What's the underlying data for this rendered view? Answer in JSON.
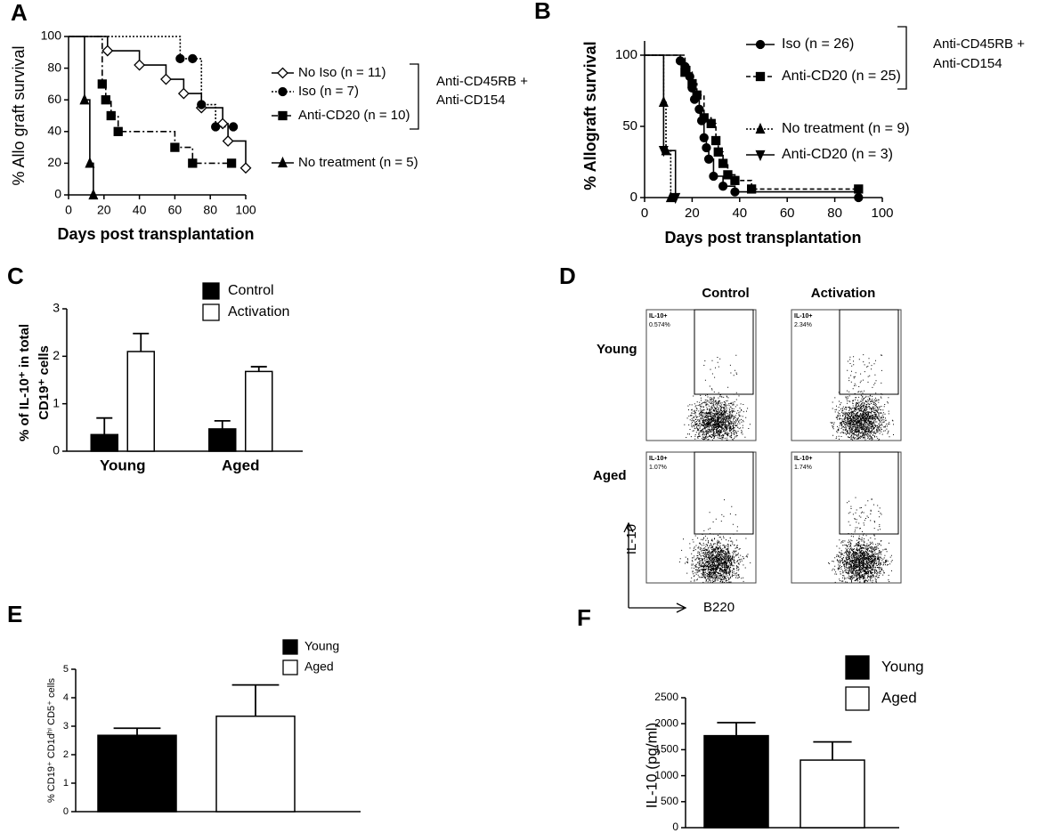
{
  "chart_data": [
    {
      "type": "survival",
      "title": "A",
      "xlabel": "Days post transplantation",
      "ylabel": "% Allo graft survival",
      "xlim": [
        0,
        100
      ],
      "xticks": [
        0,
        20,
        40,
        60,
        80,
        100
      ],
      "ylim": [
        0,
        100
      ],
      "yticks": [
        0,
        20,
        40,
        60,
        80,
        100
      ],
      "bracket_label": [
        "Anti-CD45RB +",
        "Anti-CD154"
      ],
      "series": [
        {
          "name": "No Iso (n = 11)",
          "color": "#000000",
          "dash": "solid",
          "marker": "diamond-open",
          "x": [
            0,
            22,
            40,
            55,
            65,
            75,
            87,
            90,
            100
          ],
          "values": [
            100,
            91,
            82,
            73,
            64,
            55,
            45,
            34,
            17
          ]
        },
        {
          "name": "Iso (n = 7)",
          "color": "#000000",
          "dash": "dotted",
          "marker": "circle",
          "x": [
            0,
            63,
            70,
            75,
            83,
            93
          ],
          "values": [
            100,
            86,
            86,
            57,
            43,
            43
          ]
        },
        {
          "name": "Anti-CD20 (n = 10)",
          "color": "#000000",
          "dash": "dashdot",
          "marker": "square",
          "x": [
            0,
            19,
            21,
            24,
            28,
            60,
            70,
            92
          ],
          "values": [
            100,
            70,
            60,
            50,
            40,
            30,
            20,
            20
          ]
        },
        {
          "name": "No treatment (n = 5)",
          "color": "#000000",
          "dash": "solid",
          "marker": "triangle",
          "x": [
            0,
            9,
            12,
            14
          ],
          "values": [
            100,
            60,
            20,
            0
          ]
        }
      ]
    },
    {
      "type": "survival",
      "title": "B",
      "xlabel": "Days post transplantation",
      "ylabel": "% Allograft survival",
      "xlim": [
        0,
        100
      ],
      "xticks": [
        0,
        20,
        40,
        60,
        80,
        100
      ],
      "ylim": [
        0,
        110
      ],
      "yticks": [
        0,
        50,
        100
      ],
      "bracket_label": [
        "Anti-CD45RB +",
        "Anti-CD154"
      ],
      "series": [
        {
          "name": "Iso  (n = 26)",
          "color": "#000000",
          "dash": "solid",
          "marker": "circle",
          "x": [
            0,
            15,
            17,
            19,
            20,
            21,
            23,
            24,
            25,
            26,
            27,
            29,
            33,
            38,
            90
          ],
          "values": [
            100,
            96,
            92,
            85,
            77,
            69,
            62,
            54,
            42,
            35,
            27,
            15,
            8,
            4,
            0
          ]
        },
        {
          "name": "Anti-CD20 (n = 25)",
          "color": "#000000",
          "dash": "dashed",
          "marker": "square",
          "x": [
            0,
            17,
            20,
            22,
            25,
            28,
            30,
            31,
            33,
            35,
            38,
            45,
            90
          ],
          "values": [
            100,
            88,
            80,
            72,
            56,
            52,
            40,
            32,
            24,
            16,
            12,
            6,
            6
          ]
        },
        {
          "name": "No treatment  (n = 9)",
          "color": "#000000",
          "dash": "dotted",
          "marker": "triangle",
          "x": [
            0,
            8,
            9,
            11
          ],
          "values": [
            100,
            67,
            33,
            0
          ]
        },
        {
          "name": "Anti-CD20 (n = 3)",
          "color": "#000000",
          "dash": "solid",
          "marker": "triangle-down",
          "x": [
            0,
            8,
            13
          ],
          "values": [
            100,
            33,
            0
          ]
        }
      ]
    },
    {
      "type": "bar",
      "title": "C",
      "ylabel": [
        "% of IL-10⁺ in total",
        "CD19⁺ cells"
      ],
      "categories": [
        "Young",
        "Aged"
      ],
      "ylim": [
        0,
        3
      ],
      "yticks": [
        0,
        1,
        2,
        3
      ],
      "series": [
        {
          "name": "Control",
          "color": "#000000",
          "values": [
            0.35,
            0.47
          ],
          "errors": [
            0.35,
            0.17
          ]
        },
        {
          "name": "Activation",
          "color": "#ffffff",
          "values": [
            2.1,
            1.68
          ],
          "errors": [
            0.38,
            0.1
          ]
        }
      ]
    },
    {
      "type": "flow",
      "title": "D",
      "columns": [
        "Control",
        "Activation"
      ],
      "rows": [
        "Young",
        "Aged"
      ],
      "gates": [
        [
          {
            "label": "IL-10+",
            "percent": "0.574%"
          },
          {
            "label": "IL-10+",
            "percent": "2.34%"
          }
        ],
        [
          {
            "label": "IL-10+",
            "percent": "1.07%"
          },
          {
            "label": "IL-10+",
            "percent": "1.74%"
          }
        ]
      ],
      "xlabel": "B220",
      "ylabel": "IL-10"
    },
    {
      "type": "bar",
      "title": "E",
      "ylabel": [
        "% CD19⁺ CD1dʰⁱ CD5⁺ cells"
      ],
      "categories": [
        null
      ],
      "ylim": [
        0,
        5
      ],
      "yticks": [
        0,
        1,
        2,
        3,
        4,
        5
      ],
      "series": [
        {
          "name": "Young",
          "color": "#000000",
          "values": [
            2.68
          ],
          "errors": [
            0.25
          ]
        },
        {
          "name": "Aged",
          "color": "#ffffff",
          "values": [
            3.35
          ],
          "errors": [
            1.1
          ]
        }
      ]
    },
    {
      "type": "bar",
      "title": "F",
      "ylabel": [
        "IL-10 (pg/ml)"
      ],
      "categories": [
        null
      ],
      "ylim": [
        0,
        2500
      ],
      "yticks": [
        0,
        500,
        1000,
        1500,
        2000,
        2500
      ],
      "series": [
        {
          "name": "Young",
          "color": "#000000",
          "values": [
            1770
          ],
          "errors": [
            250
          ]
        },
        {
          "name": "Aged",
          "color": "#ffffff",
          "values": [
            1300
          ],
          "errors": [
            350
          ]
        }
      ]
    }
  ]
}
